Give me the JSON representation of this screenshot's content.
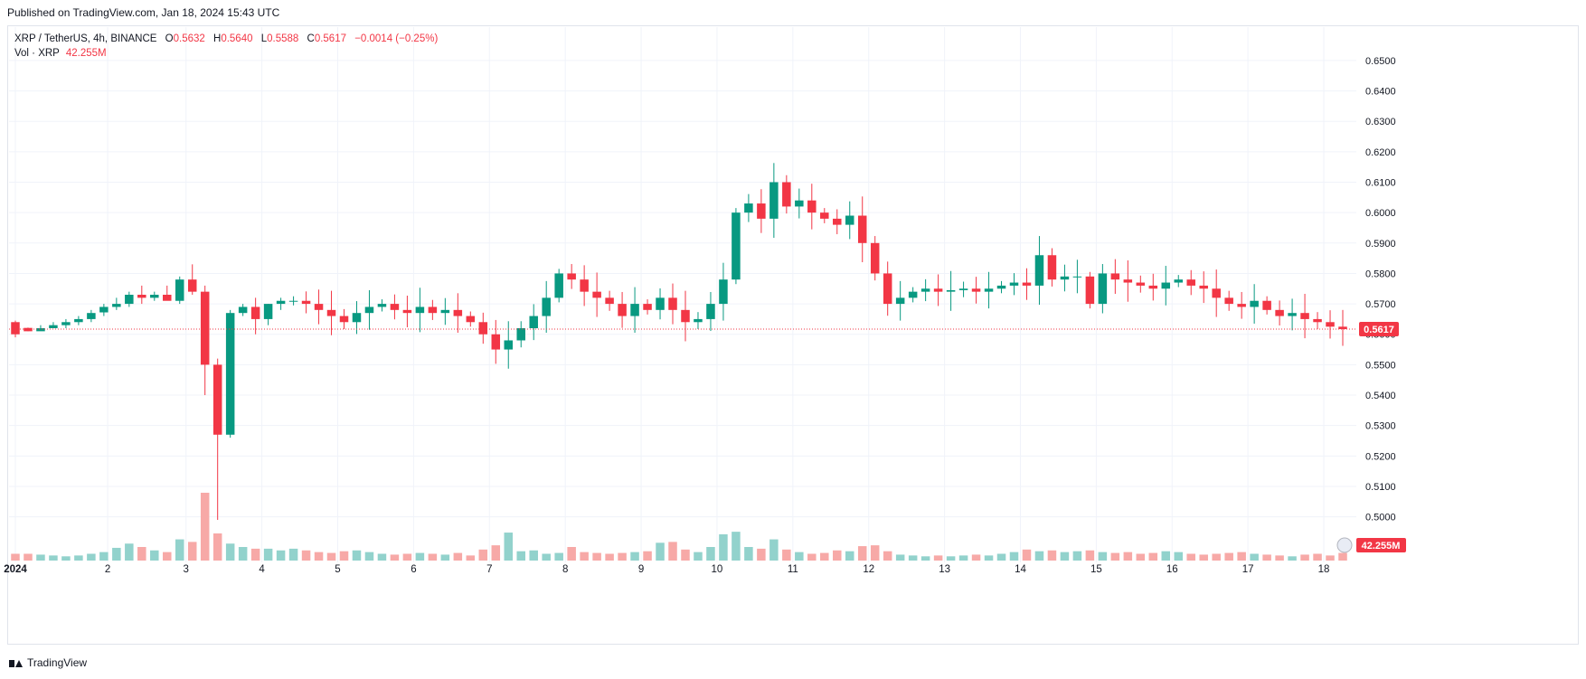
{
  "published_text": "Published on TradingView.com, Jan 18, 2024 15:43 UTC",
  "legend": {
    "symbol": "XRP / TetherUS, 4h, BINANCE",
    "open_label": "O",
    "open": "0.5632",
    "high_label": "H",
    "high": "0.5640",
    "low_label": "L",
    "low": "0.5588",
    "close_label": "C",
    "close": "0.5617",
    "change": "−0.0014 (−0.25%)",
    "volume_label": "Vol · XRP",
    "volume": "42.255M"
  },
  "price_tag": "0.5617",
  "volume_tag": "42.255M",
  "footer_brand": "TradingView",
  "colors": {
    "up": "#089981",
    "down": "#f23645",
    "up_vol": "#92d2cc",
    "down_vol": "#f7a9a7",
    "grid": "#f0f3fa"
  },
  "chart_data": {
    "type": "candlestick",
    "ylim": [
      0.488,
      0.658
    ],
    "y_ticks": [
      "0.6500",
      "0.6400",
      "0.6300",
      "0.6200",
      "0.6100",
      "0.6000",
      "0.5900",
      "0.5800",
      "0.5700",
      "0.5600",
      "0.5500",
      "0.5400",
      "0.5300",
      "0.5200",
      "0.5100",
      "0.5000"
    ],
    "x_ticks": [
      {
        "label": "2024",
        "index": 0.5
      },
      {
        "label": "2",
        "index": 7.8
      },
      {
        "label": "3",
        "index": 14
      },
      {
        "label": "4",
        "index": 20
      },
      {
        "label": "5",
        "index": 26
      },
      {
        "label": "6",
        "index": 32
      },
      {
        "label": "7",
        "index": 38
      },
      {
        "label": "8",
        "index": 44
      },
      {
        "label": "9",
        "index": 50
      },
      {
        "label": "10",
        "index": 56
      },
      {
        "label": "11",
        "index": 62
      },
      {
        "label": "12",
        "index": 68
      },
      {
        "label": "13",
        "index": 74
      },
      {
        "label": "14",
        "index": 80
      },
      {
        "label": "15",
        "index": 86
      },
      {
        "label": "16",
        "index": 92
      },
      {
        "label": "17",
        "index": 98
      },
      {
        "label": "18",
        "index": 104
      }
    ],
    "volume_max": 8,
    "candles": [
      [
        0.564,
        0.5645,
        0.559,
        0.56,
        0.8
      ],
      [
        0.5621,
        0.5622,
        0.561,
        0.561,
        0.8
      ],
      [
        0.561,
        0.563,
        0.562,
        0.562,
        0.7
      ],
      [
        0.562,
        0.564,
        0.562,
        0.563,
        0.6
      ],
      [
        0.563,
        0.565,
        0.562,
        0.564,
        0.5
      ],
      [
        0.564,
        0.566,
        0.563,
        0.565,
        0.6
      ],
      [
        0.565,
        0.568,
        0.564,
        0.567,
        0.8
      ],
      [
        0.5672,
        0.57,
        0.566,
        0.569,
        1.0
      ],
      [
        0.569,
        0.572,
        0.568,
        0.57,
        1.5
      ],
      [
        0.57,
        0.574,
        0.569,
        0.573,
        2.0
      ],
      [
        0.573,
        0.576,
        0.57,
        0.572,
        1.6
      ],
      [
        0.572,
        0.574,
        0.571,
        0.573,
        1.2
      ],
      [
        0.573,
        0.576,
        0.572,
        0.571,
        1.0
      ],
      [
        0.571,
        0.579,
        0.57,
        0.578,
        2.5
      ],
      [
        0.578,
        0.583,
        0.573,
        0.574,
        2.2
      ],
      [
        0.574,
        0.576,
        0.54,
        0.55,
        8.0
      ],
      [
        0.55,
        0.552,
        0.499,
        0.527,
        3.2
      ],
      [
        0.527,
        0.568,
        0.526,
        0.567,
        2.0
      ],
      [
        0.567,
        0.57,
        0.566,
        0.569,
        1.6
      ],
      [
        0.569,
        0.572,
        0.56,
        0.565,
        1.4
      ],
      [
        0.565,
        0.57,
        0.563,
        0.57,
        1.4
      ],
      [
        0.57,
        0.572,
        0.568,
        0.571,
        1.2
      ]
    ]
  }
}
